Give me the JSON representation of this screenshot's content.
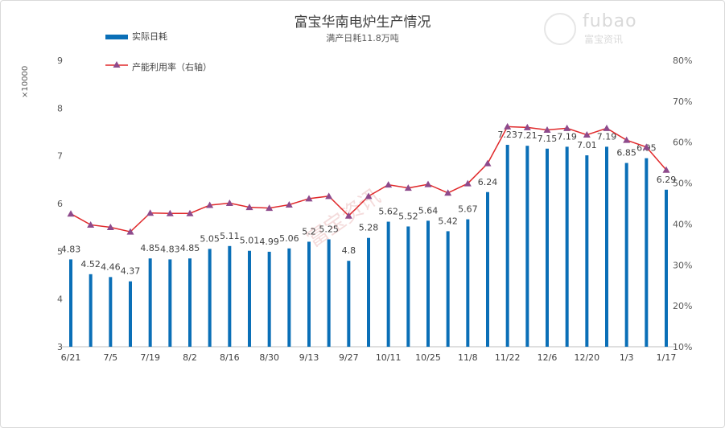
{
  "chart_data": {
    "type": "bar",
    "title": "富宝华南电炉生产情况",
    "subtitle": "满产日耗11.8万吨",
    "y_multiplier_label": "×10000",
    "ylim": [
      3,
      9
    ],
    "yticks": [
      "3",
      "4",
      "5",
      "6",
      "7",
      "8",
      "9"
    ],
    "y2lim": [
      10,
      80
    ],
    "y2ticks": [
      "10%",
      "20%",
      "30%",
      "40%",
      "50%",
      "60%",
      "70%",
      "80%"
    ],
    "xtick_labels": [
      "6/21",
      "7/5",
      "7/19",
      "8/2",
      "8/16",
      "8/30",
      "9/13",
      "9/27",
      "10/11",
      "10/25",
      "11/8",
      "11/22",
      "12/6",
      "12/20",
      "1/3",
      "1/17"
    ],
    "series": [
      {
        "name": "实际日耗",
        "type": "bar",
        "color": "#0a6fb7",
        "values": [
          4.83,
          4.52,
          4.46,
          4.37,
          4.85,
          4.83,
          4.85,
          5.05,
          5.11,
          5.01,
          4.99,
          5.06,
          5.2,
          5.25,
          4.8,
          5.28,
          5.62,
          5.52,
          5.64,
          5.42,
          5.67,
          6.24,
          7.23,
          7.21,
          7.15,
          7.19,
          7.01,
          7.19,
          6.85,
          6.95,
          6.29
        ],
        "labels": [
          "4.83",
          "4.52",
          "4.46",
          "4.37",
          "4.85",
          "4.83",
          "4.85",
          "5.05",
          "5.11",
          "5.01",
          "4.99",
          "5.06",
          "5.2",
          "5.25",
          "4.8",
          "5.28",
          "5.62",
          "5.52",
          "5.64",
          "5.42",
          "5.67",
          "6.24",
          "7.23",
          "7.21",
          "7.15",
          "7.19",
          "7.01",
          "7.19",
          "6.85",
          "6.95",
          "6.29"
        ]
      },
      {
        "name": "产能利用率（右轴）",
        "type": "line",
        "axis": "right",
        "color": "#e0292b",
        "marker_color": "#8e4a8c",
        "values": [
          42.5,
          39.8,
          39.2,
          38.1,
          42.7,
          42.6,
          42.6,
          44.6,
          45.1,
          44.1,
          43.9,
          44.7,
          46.2,
          46.8,
          42.0,
          46.8,
          49.6,
          48.8,
          49.7,
          47.6,
          49.9,
          54.8,
          63.8,
          63.6,
          63.0,
          63.4,
          61.8,
          63.4,
          60.5,
          58.8,
          53.2
        ]
      }
    ],
    "legend": {
      "placement": "top-left"
    },
    "grid": false,
    "watermark_text": "富宝资讯",
    "logo_text": "fubao",
    "logo_subtext": "富宝资讯"
  }
}
